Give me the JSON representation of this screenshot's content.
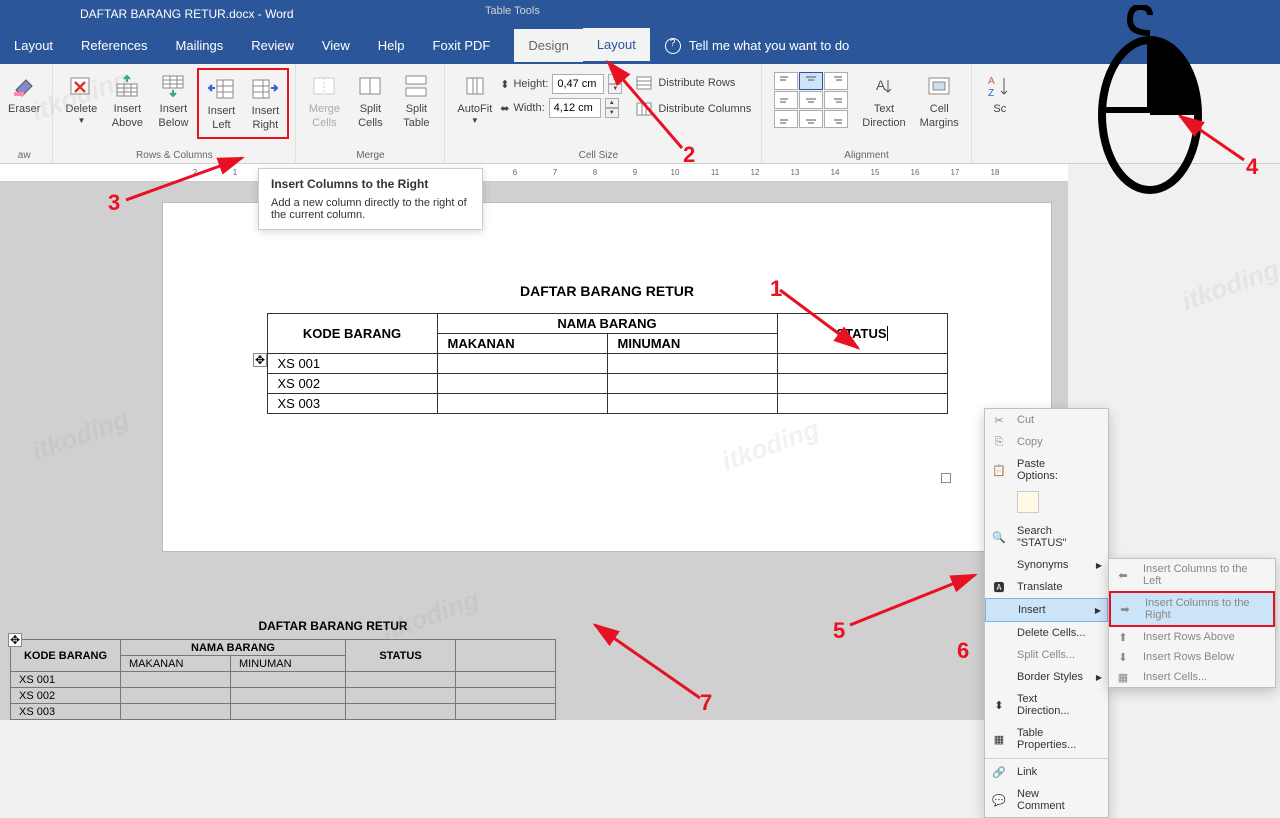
{
  "title_bar": {
    "doc_title": "DAFTAR BARANG RETUR.docx - Word",
    "table_tools": "Table Tools"
  },
  "tabs": {
    "layout": "Layout",
    "references": "References",
    "mailings": "Mailings",
    "review": "Review",
    "view": "View",
    "help": "Help",
    "foxit": "Foxit PDF",
    "design": "Design",
    "layout2": "Layout",
    "tell_me": "Tell me what you want to do"
  },
  "ribbon": {
    "draw_group": "aw",
    "eraser": "Eraser",
    "delete": "Delete",
    "insert_above": "Insert\nAbove",
    "insert_below": "Insert\nBelow",
    "insert_left": "Insert\nLeft",
    "insert_right": "Insert\nRight",
    "rows_cols_group": "Rows & Columns",
    "merge_cells": "Merge\nCells",
    "split_cells": "Split\nCells",
    "split_table": "Split\nTable",
    "merge_group": "Merge",
    "autofit": "AutoFit",
    "height_label": "Height:",
    "height_val": "0,47 cm",
    "width_label": "Width:",
    "width_val": "4,12 cm",
    "distribute_rows": "Distribute Rows",
    "distribute_cols": "Distribute Columns",
    "cell_size_group": "Cell Size",
    "text_direction": "Text\nDirection",
    "cell_margins": "Cell\nMargins",
    "alignment_group": "Alignment",
    "sort": "Sc"
  },
  "tooltip": {
    "title": "Insert Columns to the Right",
    "desc": "Add a new column directly to the right of the current column."
  },
  "doc": {
    "title": "DAFTAR BARANG RETUR",
    "headers": {
      "kode": "KODE BARANG",
      "nama": "NAMA BARANG",
      "makanan": "MAKANAN",
      "minuman": "MINUMAN",
      "status": "STATUS"
    },
    "rows": [
      {
        "kode": "XS 001"
      },
      {
        "kode": "XS 002"
      },
      {
        "kode": "XS 003"
      }
    ]
  },
  "context_menu": {
    "cut": "Cut",
    "copy": "Copy",
    "paste_options": "Paste Options:",
    "search": "Search \"STATUS\"",
    "synonyms": "Synonyms",
    "translate": "Translate",
    "insert": "Insert",
    "delete_cells": "Delete Cells...",
    "split_cells": "Split Cells...",
    "border_styles": "Border Styles",
    "text_direction": "Text Direction...",
    "table_properties": "Table Properties...",
    "link": "Link",
    "new_comment": "New Comment"
  },
  "submenu": {
    "insert_left": "Insert Columns to the Left",
    "insert_right": "Insert Columns to the Right",
    "insert_above": "Insert Rows Above",
    "insert_below": "Insert Rows Below",
    "insert_cells": "Insert Cells..."
  },
  "annotations": {
    "n1": "1",
    "n2": "2",
    "n3": "3",
    "n4": "4",
    "n5": "5",
    "n6": "6",
    "n7": "7"
  },
  "ruler_nums": [
    "2",
    "1",
    "",
    "1",
    "2",
    "3",
    "4",
    "5",
    "6",
    "7",
    "8",
    "9",
    "10",
    "11",
    "12",
    "13",
    "14",
    "15",
    "16",
    "17",
    "18"
  ],
  "watermark": "itkoding",
  "arrow_color": "#e81123"
}
